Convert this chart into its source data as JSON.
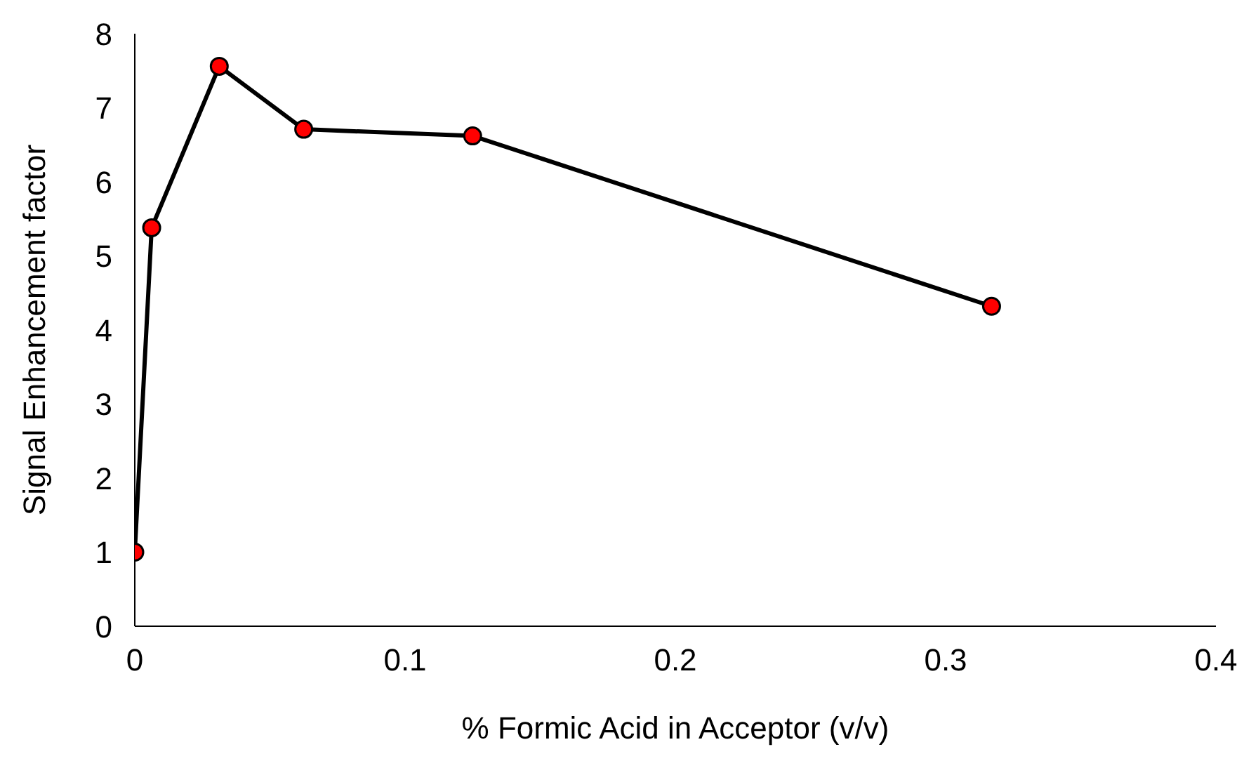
{
  "chart_data": {
    "type": "line",
    "xlabel": "% Formic Acid in Acceptor (v/v)",
    "ylabel": "Signal Enhancement factor",
    "x": [
      0,
      0.00625,
      0.03125,
      0.0625,
      0.125,
      0.317
    ],
    "series": [
      {
        "color": "#000000",
        "values": [
          1.0,
          5.38,
          7.56,
          6.71,
          6.62,
          4.32
        ]
      }
    ],
    "xlim": [
      0,
      0.4
    ],
    "xticks": [
      0,
      0.1,
      0.2,
      0.3,
      0.4
    ],
    "ylim": [
      0,
      8
    ],
    "yticks": [
      0,
      1,
      2,
      3,
      4,
      5,
      6,
      7,
      8
    ],
    "grid": false,
    "legend": false,
    "marker": "circle",
    "line_style": "solid"
  }
}
